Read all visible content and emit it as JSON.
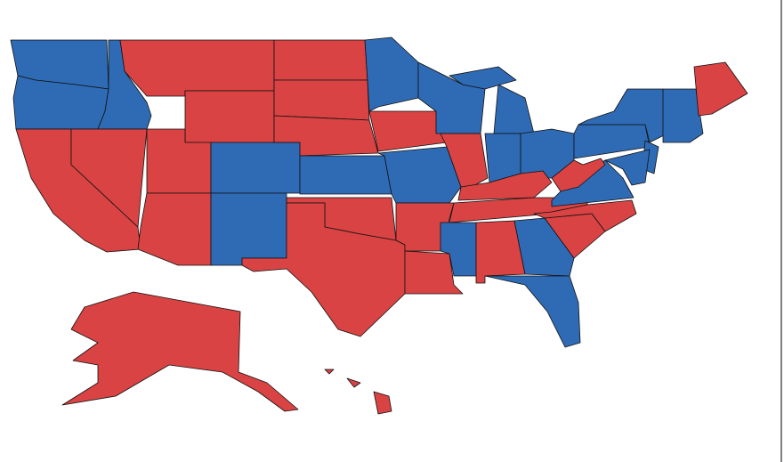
{
  "map": {
    "regions": [
      {
        "color": "#2f6bb5"
      },
      {
        "color": "#2f6bb5"
      },
      {
        "color": "#d94343"
      },
      {
        "color": "#2f6bb5"
      },
      {
        "color": "#d94343"
      },
      {
        "color": "#d94343"
      },
      {
        "color": "#d94343"
      },
      {
        "color": "#d94343"
      },
      {
        "color": "#d94343"
      },
      {
        "color": "#2f6bb5"
      },
      {
        "color": "#2f6bb5"
      },
      {
        "color": "#d94343"
      },
      {
        "color": "#d94343"
      },
      {
        "color": "#d94343"
      },
      {
        "color": "#2f6bb5"
      },
      {
        "color": "#d94343"
      },
      {
        "color": "#d94343"
      },
      {
        "color": "#2f6bb5"
      },
      {
        "color": "#d94343"
      },
      {
        "color": "#2f6bb5"
      },
      {
        "color": "#d94343"
      },
      {
        "color": "#d94343"
      },
      {
        "color": "#2f6bb5"
      },
      {
        "color": "#d94343"
      },
      {
        "color": "#2f6bb5"
      },
      {
        "color": "#2f6bb5"
      },
      {
        "color": "#2f6bb5"
      },
      {
        "color": "#2f6bb5"
      },
      {
        "color": "#d94343"
      },
      {
        "color": "#d94343"
      },
      {
        "color": "#2f6bb5"
      },
      {
        "color": "#d94343"
      },
      {
        "color": "#2f6bb5"
      },
      {
        "color": "#2f6bb5"
      },
      {
        "color": "#d94343"
      },
      {
        "color": "#d94343"
      },
      {
        "color": "#2f6bb5"
      },
      {
        "color": "#d94343"
      },
      {
        "color": "#2f6bb5"
      },
      {
        "color": "#2f6bb5"
      },
      {
        "color": "#2f6bb5"
      },
      {
        "color": "#2f6bb5"
      },
      {
        "color": "#2f6bb5"
      },
      {
        "color": "#d94343"
      },
      {
        "color": "#d94343"
      },
      {
        "color": "#d94343"
      },
      {
        "color": "#d94343"
      },
      {
        "color": "#d94343"
      }
    ]
  }
}
